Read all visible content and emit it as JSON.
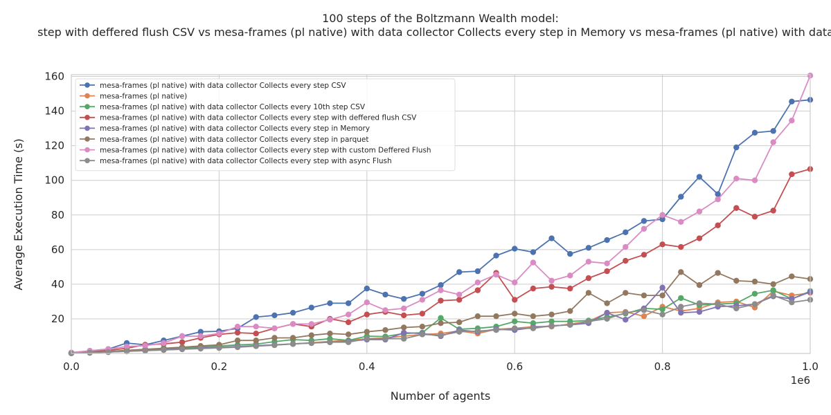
{
  "chart_data": {
    "type": "line",
    "title_lines": [
      "100 steps of the Boltzmann Wealth model:",
      "step with deffered flush CSV vs mesa-frames (pl native) with data collector Collects every step in Memory vs mesa-frames (pl native) with data c"
    ],
    "xlabel": "Number of agents",
    "ylabel": "Average Execution Time (s)",
    "x_scale_label": "1e6",
    "xlim": [
      0,
      1000000
    ],
    "ylim": [
      0,
      161
    ],
    "x_ticks": [
      0,
      200000,
      400000,
      600000,
      800000,
      1000000
    ],
    "x_tick_labels": [
      "0.0",
      "0.2",
      "0.4",
      "0.6",
      "0.8",
      "1.0"
    ],
    "y_ticks": [
      20,
      40,
      60,
      80,
      100,
      120,
      140,
      160
    ],
    "y_tick_labels": [
      "20",
      "40",
      "60",
      "80",
      "100",
      "120",
      "140",
      "160"
    ],
    "grid": true,
    "legend_position": "top-left",
    "x": [
      0,
      25000,
      50000,
      75000,
      100000,
      125000,
      150000,
      175000,
      200000,
      225000,
      250000,
      275000,
      300000,
      325000,
      350000,
      375000,
      400000,
      425000,
      450000,
      475000,
      500000,
      525000,
      550000,
      575000,
      600000,
      625000,
      650000,
      675000,
      700000,
      725000,
      750000,
      775000,
      800000,
      825000,
      850000,
      875000,
      900000,
      925000,
      950000,
      975000,
      1000000
    ],
    "series": [
      {
        "name": "mesa-frames (pl native) with data collector Collects every step CSV",
        "color": "#4c72b0",
        "values": [
          0.4,
          1.5,
          2.5,
          6.0,
          5.0,
          7.5,
          10.0,
          12.5,
          12.8,
          14.5,
          21.0,
          22.0,
          23.5,
          26.5,
          29.0,
          29.0,
          37.5,
          34.0,
          31.5,
          34.5,
          39.5,
          47.0,
          47.5,
          56.5,
          60.5,
          58.5,
          66.5,
          57.5,
          61.0,
          65.5,
          70.0,
          76.5,
          77.5,
          90.5,
          102.0,
          92.0,
          119.0,
          127.5,
          128.5,
          145.5,
          146.5
        ]
      },
      {
        "name": "mesa-frames (pl native)",
        "color": "#dd8452",
        "values": [
          0.1,
          0.4,
          0.8,
          1.2,
          1.6,
          2.0,
          2.5,
          2.9,
          3.3,
          3.8,
          4.3,
          4.8,
          5.5,
          6.2,
          7.0,
          7.5,
          8.5,
          9.0,
          10.0,
          11.0,
          11.5,
          13.0,
          11.5,
          14.0,
          14.5,
          15.5,
          15.5,
          17.0,
          18.5,
          23.5,
          24.0,
          21.5,
          27.0,
          24.5,
          26.0,
          29.5,
          30.0,
          26.5,
          36.0,
          33.5,
          35.0
        ]
      },
      {
        "name": "mesa-frames (pl native) with data collector Collects every 10th step CSV",
        "color": "#55a868",
        "values": [
          0.2,
          0.6,
          1.1,
          1.6,
          2.2,
          2.7,
          3.2,
          3.8,
          4.3,
          4.9,
          5.4,
          6.8,
          8.0,
          7.5,
          8.5,
          7.5,
          10.0,
          9.8,
          11.5,
          12.0,
          20.5,
          14.0,
          14.5,
          15.5,
          18.5,
          17.5,
          18.5,
          18.5,
          19.0,
          21.0,
          23.0,
          26.0,
          25.5,
          32.0,
          28.0,
          28.5,
          29.0,
          34.5,
          36.5,
          31.5,
          36.0
        ]
      },
      {
        "name": "mesa-frames (pl native) with data collector Collects every step with deffered flush CSV",
        "color": "#c44e52",
        "values": [
          0.3,
          1.0,
          1.8,
          3.0,
          5.0,
          5.5,
          6.5,
          9.0,
          11.0,
          12.0,
          11.5,
          14.5,
          17.0,
          15.5,
          20.0,
          18.0,
          22.5,
          24.0,
          22.0,
          23.0,
          30.5,
          31.0,
          36.5,
          46.5,
          31.0,
          37.5,
          38.5,
          37.5,
          43.5,
          47.5,
          53.5,
          57.0,
          63.0,
          61.5,
          66.5,
          74.0,
          84.0,
          79.0,
          82.5,
          103.5,
          106.5
        ]
      },
      {
        "name": "mesa-frames (pl native) with data collector Collects every step in Memory",
        "color": "#8172b3",
        "values": [
          0.1,
          0.4,
          0.8,
          1.3,
          1.7,
          2.2,
          2.7,
          3.1,
          3.5,
          4.0,
          4.5,
          5.0,
          5.5,
          6.0,
          6.5,
          7.0,
          8.0,
          8.0,
          12.0,
          11.5,
          10.0,
          13.5,
          12.5,
          14.0,
          13.5,
          15.0,
          16.0,
          16.5,
          17.5,
          23.5,
          19.5,
          26.0,
          38.0,
          23.5,
          24.0,
          27.0,
          27.5,
          28.5,
          33.0,
          31.5,
          35.5
        ]
      },
      {
        "name": "mesa-frames (pl native) with data collector Collects every step in parquet",
        "color": "#937860",
        "values": [
          0.2,
          0.7,
          1.2,
          1.8,
          2.4,
          3.0,
          3.6,
          4.3,
          5.0,
          7.5,
          7.5,
          9.0,
          9.0,
          10.5,
          11.5,
          11.0,
          12.5,
          13.5,
          15.0,
          15.5,
          17.5,
          18.0,
          21.5,
          21.5,
          23.0,
          21.5,
          22.5,
          24.5,
          35.0,
          29.0,
          35.0,
          33.5,
          33.5,
          47.0,
          39.5,
          46.5,
          42.0,
          41.5,
          40.0,
          44.5,
          43.0
        ]
      },
      {
        "name": "mesa-frames (pl native) with data collector Collects every step with custom Deffered Flush",
        "color": "#da8bc3",
        "values": [
          0.5,
          1.5,
          2.5,
          4.0,
          4.5,
          6.0,
          10.0,
          10.0,
          11.5,
          15.5,
          15.5,
          14.5,
          17.0,
          17.0,
          19.5,
          22.5,
          29.5,
          25.0,
          26.0,
          31.0,
          36.5,
          34.0,
          41.0,
          45.5,
          41.0,
          52.5,
          42.0,
          45.0,
          53.0,
          52.0,
          61.5,
          72.0,
          80.0,
          76.0,
          82.0,
          89.0,
          101.0,
          100.0,
          122.0,
          134.5,
          160.5
        ]
      },
      {
        "name": "mesa-frames (pl native) with data collector Collects every step with async Flush",
        "color": "#8c8c8c",
        "values": [
          0.1,
          0.4,
          0.8,
          1.2,
          1.6,
          2.0,
          2.4,
          2.8,
          3.2,
          3.6,
          4.2,
          4.8,
          5.5,
          6.0,
          6.5,
          6.5,
          8.5,
          8.5,
          8.5,
          11.0,
          10.5,
          12.5,
          13.0,
          13.5,
          14.5,
          14.5,
          16.0,
          16.5,
          18.5,
          20.0,
          23.5,
          25.0,
          22.5,
          27.0,
          29.0,
          28.5,
          26.0,
          28.5,
          33.5,
          29.5,
          31.0
        ]
      }
    ]
  }
}
